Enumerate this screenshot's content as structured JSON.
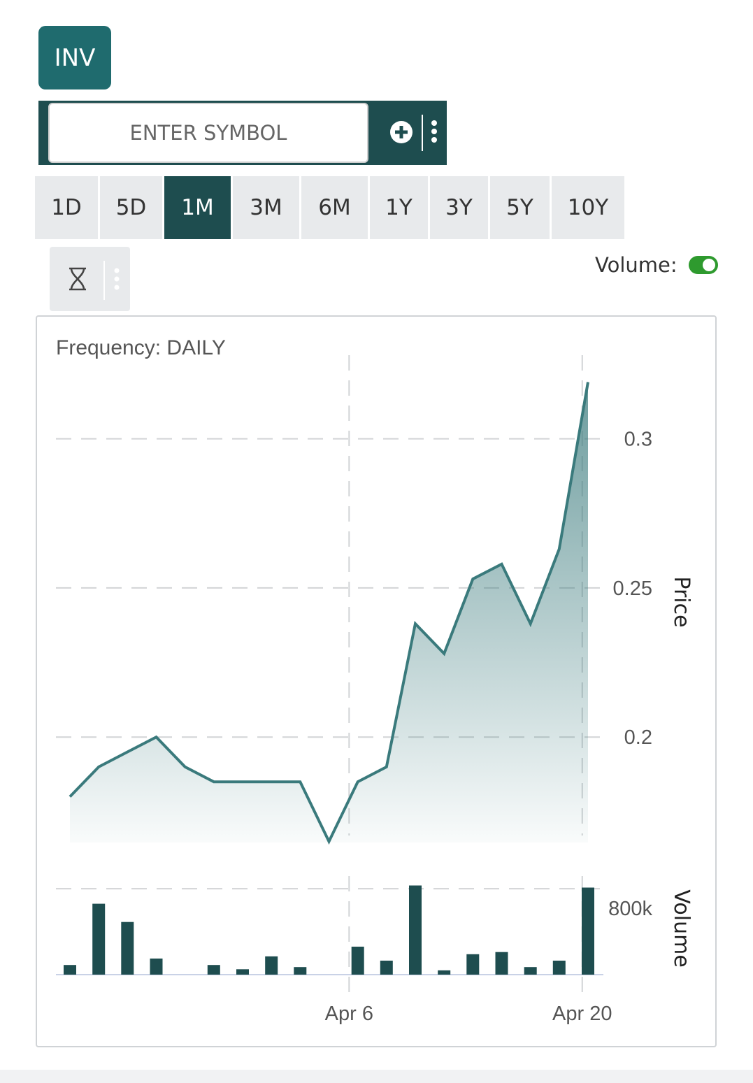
{
  "ticker": {
    "label": "INV"
  },
  "symbol_search": {
    "placeholder": "ENTER SYMBOL",
    "value": ""
  },
  "icons": {
    "add": "plus-circle-icon",
    "more": "vertical-dots-icon",
    "period": "hourglass-icon"
  },
  "periods": [
    {
      "label": "1D",
      "active": false
    },
    {
      "label": "5D",
      "active": false
    },
    {
      "label": "1M",
      "active": true
    },
    {
      "label": "3M",
      "active": false
    },
    {
      "label": "6M",
      "active": false
    },
    {
      "label": "1Y",
      "active": false
    },
    {
      "label": "3Y",
      "active": false
    },
    {
      "label": "5Y",
      "active": false
    },
    {
      "label": "10Y",
      "active": false
    }
  ],
  "volume_toggle": {
    "label": "Volume:",
    "on": true
  },
  "colors": {
    "accent": "#1f6b6e",
    "dark": "#1e4d4f",
    "line": "#3a7a7c",
    "toggle": "#2e9a2e"
  },
  "chart_data": {
    "type": "line",
    "frequency_label": "Frequency: DAILY",
    "price": {
      "ylabel": "Price",
      "yticks": [
        0.2,
        0.25,
        0.3
      ],
      "ylim": [
        0.167,
        0.321
      ],
      "values": [
        0.18,
        0.19,
        0.195,
        0.2,
        0.19,
        0.185,
        0.185,
        0.185,
        0.185,
        0.165,
        0.185,
        0.19,
        0.238,
        0.228,
        0.253,
        0.258,
        0.238,
        0.263,
        0.319
      ]
    },
    "volume": {
      "ylabel": "Volume",
      "ytick": "800k",
      "ytick_value": 800000,
      "ylim": [
        0,
        820000
      ],
      "values": [
        90000,
        660000,
        490000,
        150000,
        0,
        90000,
        50000,
        170000,
        70000,
        0,
        260000,
        130000,
        830000,
        40000,
        190000,
        210000,
        70000,
        130000,
        810000
      ]
    },
    "x_ticks": [
      {
        "label": "Apr 6",
        "index": 9.7
      },
      {
        "label": "Apr 20",
        "index": 17.8
      }
    ],
    "grid": "dashed"
  }
}
